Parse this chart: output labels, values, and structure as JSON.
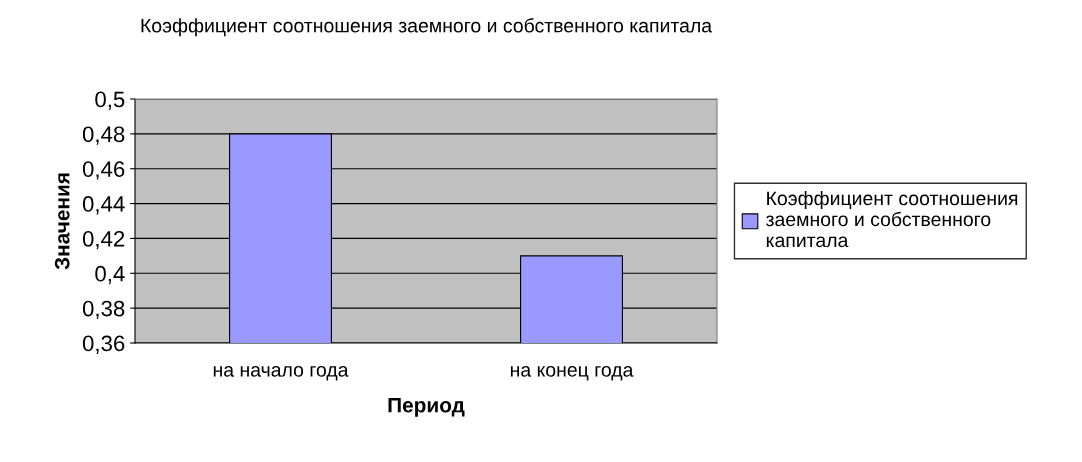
{
  "chart_data": {
    "type": "bar",
    "title": "Коэффициент соотношения заемного и собственного капитала",
    "xlabel": "Период",
    "ylabel": "Значения",
    "categories": [
      "на начало года",
      "на конец года"
    ],
    "series": [
      {
        "name": "Коэффициент соотношения\nзаемного и собственного\nкапитала",
        "color": "#9999ff",
        "values": [
          0.48,
          0.41
        ]
      }
    ],
    "ylim": [
      0.36,
      0.5
    ],
    "yticks": [
      {
        "value": 0.36,
        "label": "0,36"
      },
      {
        "value": 0.38,
        "label": "0,38"
      },
      {
        "value": 0.4,
        "label": "0,4"
      },
      {
        "value": 0.42,
        "label": "0,42"
      },
      {
        "value": 0.44,
        "label": "0,44"
      },
      {
        "value": 0.46,
        "label": "0,46"
      },
      {
        "value": 0.48,
        "label": "0,48"
      },
      {
        "value": 0.5,
        "label": "0,5"
      }
    ],
    "grid": "y",
    "legend": "right"
  }
}
